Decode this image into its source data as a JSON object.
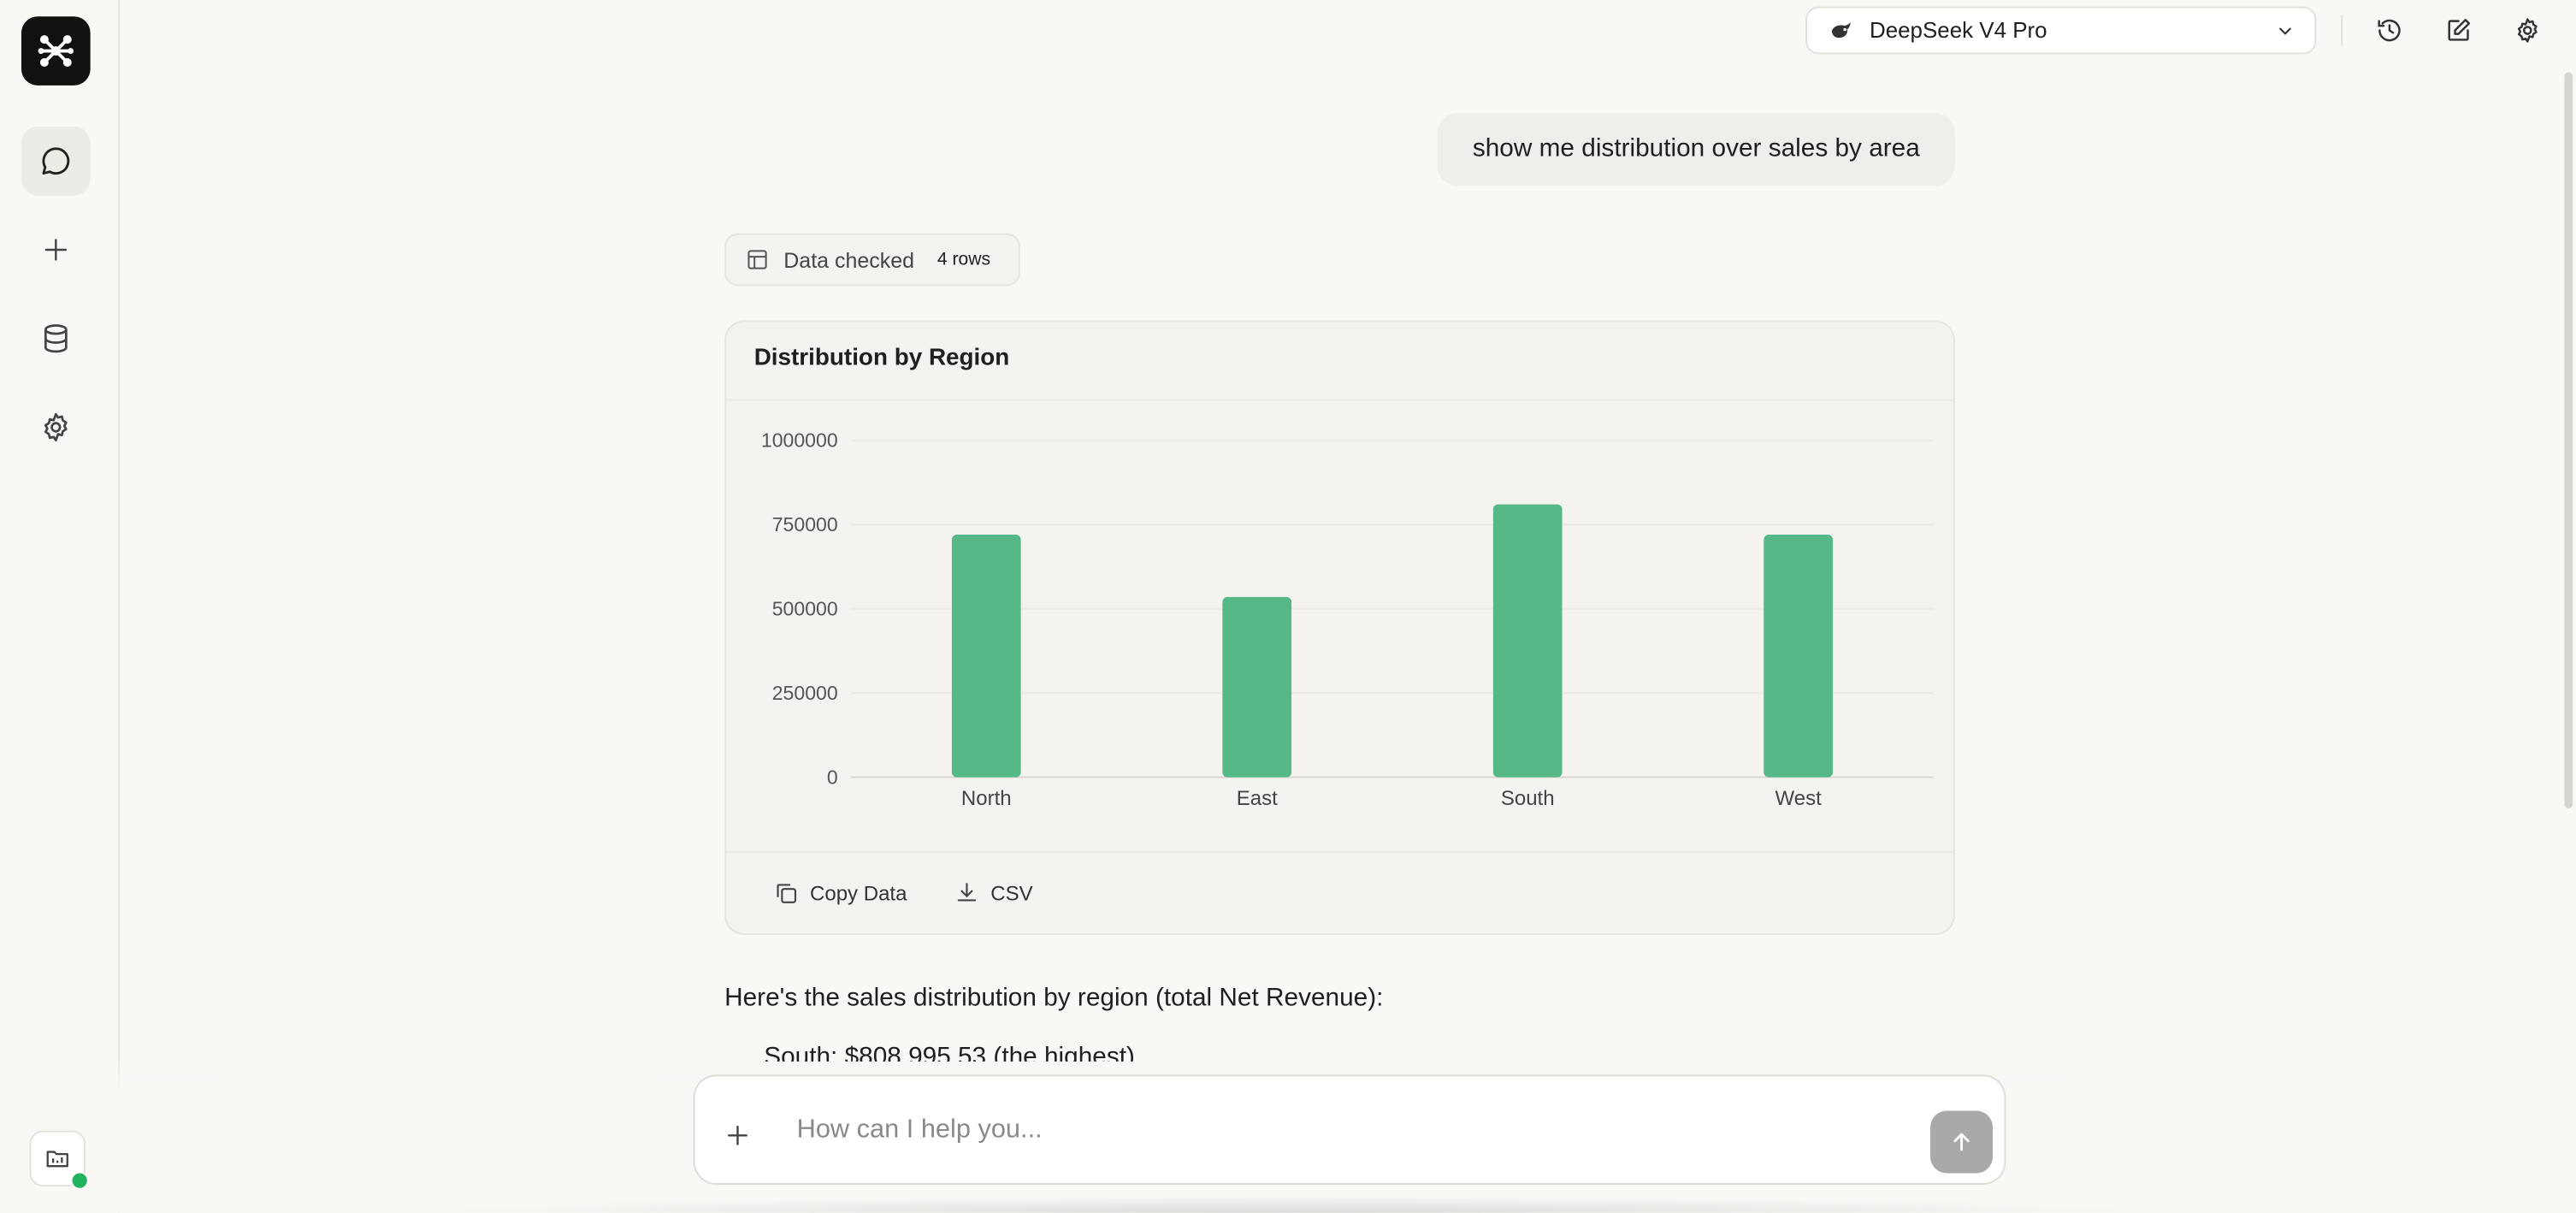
{
  "sidebar": {
    "logo_icon": "app-logo-icon",
    "items": [
      {
        "icon": "chat-bubble-icon",
        "active": true
      },
      {
        "icon": "plus-icon",
        "active": false
      },
      {
        "icon": "database-icon",
        "active": false
      },
      {
        "icon": "gear-icon",
        "active": false
      }
    ],
    "bottom_icon": "folder-icon",
    "status_color": "#22b35e"
  },
  "header": {
    "model_name": "DeepSeek V4 Pro",
    "model_icon": "whale-icon",
    "actions": [
      "history-icon",
      "edit-icon",
      "gear-icon"
    ]
  },
  "chat": {
    "user_message": "show me distribution over sales by area",
    "data_checked": {
      "label": "Data checked",
      "count": "4 rows"
    },
    "chart_card": {
      "copy_label": "Copy Data",
      "csv_label": "CSV"
    },
    "answer_intro": "Here's the sales distribution by region (total Net Revenue):",
    "answer_partial": "South: $808,995.53 (the highest)"
  },
  "chart_data": {
    "type": "bar",
    "title": "Distribution by Region",
    "categories": [
      "North",
      "East",
      "South",
      "West"
    ],
    "values": [
      720000,
      535000,
      810000,
      720000
    ],
    "ylim": [
      0,
      1000000
    ],
    "yticks": [
      0,
      250000,
      500000,
      750000,
      1000000
    ],
    "ytick_labels": [
      "0",
      "250000",
      "500000",
      "750000",
      "1000000"
    ],
    "xlabel": "",
    "ylabel": "",
    "grid": true,
    "bar_color": "#55b886"
  },
  "input": {
    "placeholder": "How can I help you..."
  }
}
